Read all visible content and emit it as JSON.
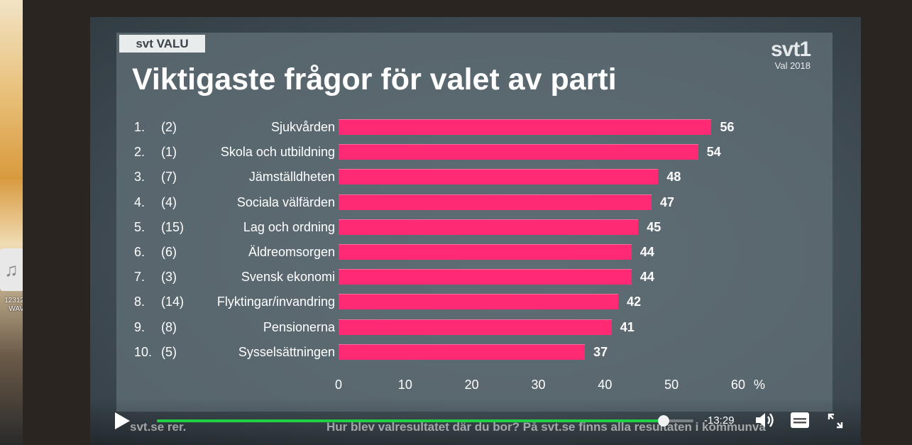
{
  "desktop": {
    "file_label_line1": "12312",
    "file_label_line2": "WAV",
    "file_icon": "music-note-icon"
  },
  "video": {
    "brand_chip": "svt VALU",
    "logo": {
      "mark": "svt1",
      "sub": "Val 2018"
    },
    "ticker": {
      "site": "svt.se  rer.",
      "headline": "Hur blev valresultatet där du bor? På svt.se finns alla resultaten i kommunva"
    }
  },
  "chart_data": {
    "type": "bar",
    "orientation": "horizontal",
    "title": "Viktigaste frågor för valet av parti",
    "ranks": [
      "1.",
      "2.",
      "3.",
      "4.",
      "5.",
      "6.",
      "7.",
      "8.",
      "9.",
      "10."
    ],
    "previous_ranks": [
      "(2)",
      "(1)",
      "(7)",
      "(4)",
      "(15)",
      "(6)",
      "(3)",
      "(14)",
      "(8)",
      "(5)"
    ],
    "categories": [
      "Sjukvården",
      "Skola och utbildning",
      "Jämställdheten",
      "Sociala välfärden",
      "Lag och ordning",
      "Äldreomsorgen",
      "Svensk ekonomi",
      "Flyktingar/invandring",
      "Pensionerna",
      "Sysselsättningen"
    ],
    "values": [
      56,
      54,
      48,
      47,
      45,
      44,
      44,
      42,
      41,
      37
    ],
    "xticks": [
      0,
      10,
      20,
      30,
      40,
      50,
      60
    ],
    "xlim": [
      0,
      60
    ],
    "unit": "%",
    "bar_color": "#ff2a73"
  },
  "player": {
    "time_remaining": "-13:29",
    "progress_fraction": 0.945,
    "icons": {
      "play": "play-icon",
      "volume": "volume-icon",
      "subtitles": "subtitles-icon",
      "fullscreen": "fullscreen-icon"
    },
    "accent": "#1fd045"
  }
}
